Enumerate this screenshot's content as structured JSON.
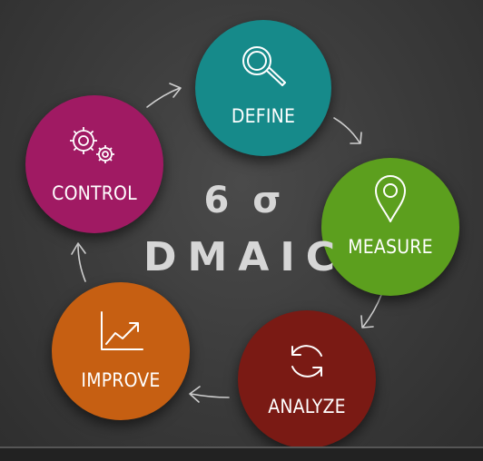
{
  "center": {
    "sigma": "6 σ",
    "title": "DMAIC"
  },
  "nodes": {
    "define": {
      "label": "DEFINE",
      "color": "#168a8a",
      "icon": "magnifier-icon"
    },
    "measure": {
      "label": "MEASURE",
      "color": "#5c9f1e",
      "icon": "location-pin-icon"
    },
    "analyze": {
      "label": "ANALYZE",
      "color": "#7a1a14",
      "icon": "refresh-cycle-icon"
    },
    "improve": {
      "label": "IMPROVE",
      "color": "#c65f12",
      "icon": "line-chart-icon"
    },
    "control": {
      "label": "CONTROL",
      "color": "#a01a63",
      "icon": "gears-icon"
    }
  }
}
